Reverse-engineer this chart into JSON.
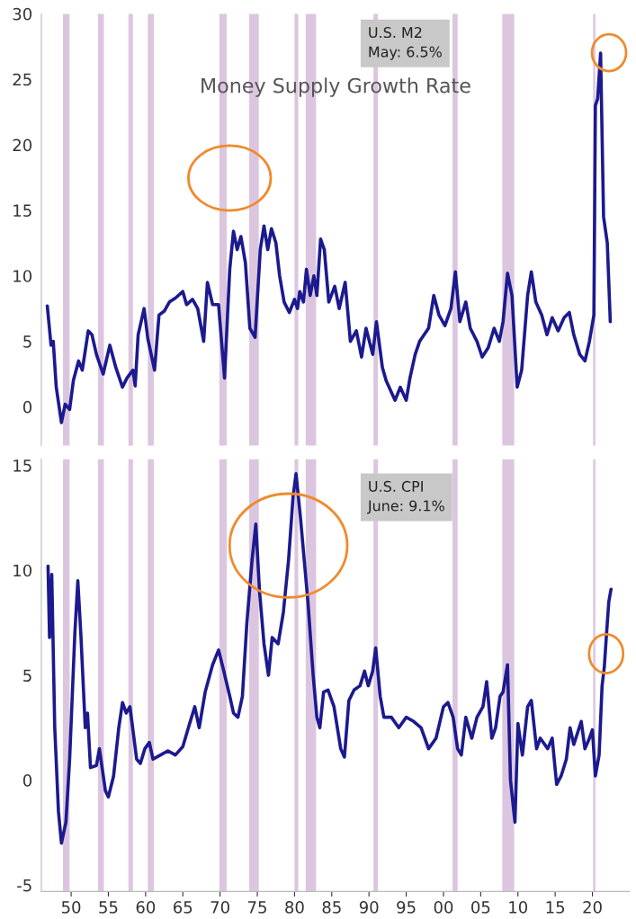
{
  "chart_data": [
    {
      "type": "line",
      "title": "Money Supply Growth Rate",
      "annotations": [
        "U.S. M2\nMay: 6.5%"
      ],
      "tick_labels": "y",
      "grid": false,
      "legend": false,
      "line_style": "solid",
      "marker": "none",
      "xlim": [
        1946,
        2025
      ],
      "ylim": [
        -3,
        30
      ],
      "yticks": [
        0,
        5,
        10,
        15,
        20,
        25,
        30
      ],
      "bands": [
        {
          "axis": "x",
          "from": 1948.9,
          "to": 1949.8,
          "color": "#dcc6df"
        },
        {
          "axis": "x",
          "from": 1953.6,
          "to": 1954.4,
          "color": "#dcc6df"
        },
        {
          "axis": "x",
          "from": 1957.7,
          "to": 1958.3,
          "color": "#dcc6df"
        },
        {
          "axis": "x",
          "from": 1960.3,
          "to": 1961.1,
          "color": "#dcc6df"
        },
        {
          "axis": "x",
          "from": 1969.9,
          "to": 1970.9,
          "color": "#dcc6df"
        },
        {
          "axis": "x",
          "from": 1973.9,
          "to": 1975.2,
          "color": "#dcc6df"
        },
        {
          "axis": "x",
          "from": 1980.0,
          "to": 1980.5,
          "color": "#dcc6df"
        },
        {
          "axis": "x",
          "from": 1981.5,
          "to": 1982.9,
          "color": "#dcc6df"
        },
        {
          "axis": "x",
          "from": 1990.6,
          "to": 1991.2,
          "color": "#dcc6df"
        },
        {
          "axis": "x",
          "from": 2001.2,
          "to": 2001.9,
          "color": "#dcc6df"
        },
        {
          "axis": "x",
          "from": 2007.9,
          "to": 2009.5,
          "color": "#dcc6df"
        },
        {
          "axis": "x",
          "from": 2020.1,
          "to": 2020.4,
          "color": "#dcc6df"
        }
      ],
      "series": [
        {
          "color": "#1c1a8e",
          "x": [
            1946.8,
            1947.3,
            1947.6,
            1948.0,
            1948.7,
            1949.2,
            1949.8,
            1950.3,
            1951.0,
            1951.5,
            1952.3,
            1952.8,
            1953.4,
            1954.3,
            1955.2,
            1956.0,
            1956.9,
            1957.5,
            1958.3,
            1958.6,
            1959.0,
            1959.8,
            1960.3,
            1961.2,
            1961.8,
            1962.5,
            1963.2,
            1964.0,
            1965.0,
            1965.5,
            1966.3,
            1967.0,
            1967.8,
            1968.3,
            1969.0,
            1969.8,
            1970.6,
            1971.3,
            1971.8,
            1972.3,
            1972.8,
            1973.4,
            1974.0,
            1974.7,
            1975.4,
            1975.9,
            1976.4,
            1976.9,
            1977.5,
            1978.0,
            1978.6,
            1979.3,
            1980.0,
            1980.4,
            1980.7,
            1981.2,
            1981.6,
            1982.1,
            1982.6,
            1983.0,
            1983.5,
            1984.0,
            1984.6,
            1985.4,
            1986.0,
            1986.8,
            1987.5,
            1988.3,
            1989.0,
            1989.6,
            1990.5,
            1991.0,
            1991.8,
            1992.3,
            1993.5,
            1994.2,
            1995.0,
            1995.5,
            1996.2,
            1996.8,
            1997.4,
            1998.0,
            1998.7,
            1999.4,
            2000.2,
            2001.0,
            2001.6,
            2002.2,
            2003.0,
            2003.6,
            2004.5,
            2005.2,
            2006.0,
            2006.8,
            2007.5,
            2008.0,
            2008.6,
            2009.2,
            2009.9,
            2010.5,
            2011.3,
            2011.8,
            2012.4,
            2013.2,
            2013.9,
            2014.6,
            2015.4,
            2016.2,
            2016.9,
            2017.5,
            2018.3,
            2019.0,
            2019.6,
            2020.2,
            2020.4,
            2020.7,
            2021.1,
            2021.5,
            2022.0,
            2022.4
          ],
          "values": [
            7.7,
            4.7,
            5.0,
            1.5,
            -1.2,
            0.2,
            -0.2,
            2.0,
            3.5,
            2.8,
            5.8,
            5.5,
            4.0,
            2.5,
            4.7,
            3.0,
            1.5,
            2.2,
            2.8,
            1.6,
            5.5,
            7.5,
            5.2,
            2.8,
            7.0,
            7.3,
            8.0,
            8.3,
            8.8,
            7.8,
            8.2,
            7.5,
            5.0,
            9.5,
            7.8,
            7.8,
            2.2,
            10.5,
            13.4,
            12.0,
            13.0,
            11.0,
            6.0,
            5.3,
            12.0,
            13.8,
            12.0,
            13.6,
            12.5,
            10.0,
            8.0,
            7.2,
            8.2,
            7.5,
            8.8,
            8.0,
            10.5,
            8.5,
            10.0,
            8.5,
            12.8,
            12.0,
            8.0,
            9.2,
            7.5,
            9.5,
            5.0,
            5.8,
            3.8,
            6.0,
            4.0,
            6.5,
            3.0,
            2.0,
            0.5,
            1.5,
            0.5,
            2.2,
            4.0,
            5.0,
            5.5,
            6.0,
            8.5,
            7.0,
            6.2,
            7.5,
            10.3,
            6.5,
            8.0,
            6.0,
            5.0,
            3.8,
            4.5,
            6.0,
            5.0,
            6.5,
            10.2,
            8.5,
            1.5,
            2.8,
            8.5,
            10.3,
            8.0,
            7.0,
            5.5,
            6.8,
            5.8,
            6.8,
            7.2,
            5.5,
            4.0,
            3.5,
            5.0,
            7.0,
            23.0,
            23.5,
            27.0,
            14.5,
            12.5,
            6.5
          ]
        }
      ]
    },
    {
      "type": "line",
      "annotations": [
        "U.S. CPI\nJune: 9.1%"
      ],
      "grid": false,
      "legend": false,
      "line_style": "solid",
      "marker": "none",
      "xlim": [
        1946,
        2025
      ],
      "ylim": [
        -5.3,
        15.3
      ],
      "yticks": [
        -5,
        0,
        5,
        10,
        15
      ],
      "xticks": [
        {
          "value": 1950,
          "label": "50"
        },
        {
          "value": 1955,
          "label": "55"
        },
        {
          "value": 1960,
          "label": "60"
        },
        {
          "value": 1965,
          "label": "65"
        },
        {
          "value": 1970,
          "label": "70"
        },
        {
          "value": 1975,
          "label": "75"
        },
        {
          "value": 1980,
          "label": "80"
        },
        {
          "value": 1985,
          "label": "85"
        },
        {
          "value": 1990,
          "label": "90"
        },
        {
          "value": 1995,
          "label": "95"
        },
        {
          "value": 2000,
          "label": "00"
        },
        {
          "value": 2005,
          "label": "05"
        },
        {
          "value": 2010,
          "label": "10"
        },
        {
          "value": 2015,
          "label": "15"
        },
        {
          "value": 2020,
          "label": "20"
        }
      ],
      "bands": [
        {
          "axis": "x",
          "from": 1948.9,
          "to": 1949.8,
          "color": "#dcc6df"
        },
        {
          "axis": "x",
          "from": 1953.6,
          "to": 1954.4,
          "color": "#dcc6df"
        },
        {
          "axis": "x",
          "from": 1957.7,
          "to": 1958.3,
          "color": "#dcc6df"
        },
        {
          "axis": "x",
          "from": 1960.3,
          "to": 1961.1,
          "color": "#dcc6df"
        },
        {
          "axis": "x",
          "from": 1969.9,
          "to": 1970.9,
          "color": "#dcc6df"
        },
        {
          "axis": "x",
          "from": 1973.9,
          "to": 1975.2,
          "color": "#dcc6df"
        },
        {
          "axis": "x",
          "from": 1980.0,
          "to": 1980.5,
          "color": "#dcc6df"
        },
        {
          "axis": "x",
          "from": 1981.5,
          "to": 1982.9,
          "color": "#dcc6df"
        },
        {
          "axis": "x",
          "from": 1990.6,
          "to": 1991.2,
          "color": "#dcc6df"
        },
        {
          "axis": "x",
          "from": 2001.2,
          "to": 2001.9,
          "color": "#dcc6df"
        },
        {
          "axis": "x",
          "from": 2007.9,
          "to": 2009.5,
          "color": "#dcc6df"
        },
        {
          "axis": "x",
          "from": 2020.1,
          "to": 2020.4,
          "color": "#dcc6df"
        }
      ],
      "series": [
        {
          "color": "#1c1a8e",
          "x": [
            1946.9,
            1947.1,
            1947.4,
            1947.8,
            1948.3,
            1948.7,
            1949.3,
            1949.8,
            1950.5,
            1950.9,
            1951.3,
            1951.9,
            1952.2,
            1952.6,
            1953.4,
            1953.8,
            1954.6,
            1955.0,
            1955.7,
            1956.4,
            1956.9,
            1957.4,
            1957.9,
            1958.8,
            1959.3,
            1959.9,
            1960.5,
            1961.0,
            1962.0,
            1963.0,
            1964.0,
            1965.0,
            1966.0,
            1966.6,
            1967.2,
            1968.0,
            1969.0,
            1969.8,
            1970.5,
            1971.3,
            1971.8,
            1972.4,
            1973.0,
            1973.6,
            1974.3,
            1974.8,
            1975.3,
            1975.9,
            1976.5,
            1977.0,
            1977.8,
            1978.5,
            1979.2,
            1979.8,
            1980.2,
            1980.8,
            1981.3,
            1981.8,
            1982.5,
            1983.0,
            1983.4,
            1983.9,
            1984.5,
            1985.3,
            1986.2,
            1986.7,
            1987.3,
            1988.0,
            1988.8,
            1989.4,
            1989.9,
            1990.5,
            1990.9,
            1991.5,
            1992.0,
            1993.0,
            1994.0,
            1995.0,
            1996.0,
            1997.0,
            1998.0,
            1999.0,
            2000.0,
            2000.6,
            2001.3,
            2001.9,
            2002.4,
            2003.0,
            2003.8,
            2004.5,
            2005.3,
            2005.8,
            2006.5,
            2007.0,
            2007.6,
            2008.0,
            2008.6,
            2009.0,
            2009.6,
            2010.0,
            2010.6,
            2011.3,
            2011.8,
            2012.5,
            2013.0,
            2014.0,
            2014.6,
            2015.2,
            2015.8,
            2016.5,
            2017.0,
            2017.5,
            2018.5,
            2019.0,
            2019.6,
            2020.0,
            2020.4,
            2020.9,
            2021.3,
            2021.6,
            2021.9,
            2022.2,
            2022.5
          ],
          "values": [
            10.2,
            6.8,
            9.8,
            2.5,
            -1.5,
            -3.0,
            -2.0,
            1.0,
            7.0,
            9.5,
            7.0,
            2.5,
            3.2,
            0.6,
            0.7,
            1.5,
            -0.5,
            -0.8,
            0.2,
            2.5,
            3.7,
            3.2,
            3.5,
            1.0,
            0.8,
            1.5,
            1.8,
            1.0,
            1.2,
            1.4,
            1.2,
            1.6,
            2.8,
            3.5,
            2.5,
            4.2,
            5.5,
            6.2,
            5.2,
            4.0,
            3.2,
            3.0,
            4.0,
            7.5,
            10.5,
            12.2,
            9.0,
            6.5,
            5.0,
            6.8,
            6.5,
            8.0,
            10.5,
            13.5,
            14.6,
            12.5,
            10.5,
            8.5,
            5.0,
            3.0,
            2.5,
            4.2,
            4.3,
            3.5,
            1.5,
            1.1,
            3.8,
            4.3,
            4.5,
            5.2,
            4.5,
            5.2,
            6.3,
            4.0,
            3.0,
            3.0,
            2.5,
            3.0,
            2.8,
            2.5,
            1.5,
            2.0,
            3.5,
            3.7,
            3.0,
            1.5,
            1.2,
            3.0,
            2.0,
            3.0,
            3.5,
            4.7,
            2.0,
            2.5,
            4.0,
            4.2,
            5.5,
            0.0,
            -2.0,
            2.7,
            1.2,
            3.5,
            3.8,
            1.5,
            2.0,
            1.5,
            2.0,
            -0.2,
            0.2,
            1.0,
            2.5,
            1.7,
            2.8,
            1.5,
            2.0,
            2.4,
            0.2,
            1.2,
            4.5,
            5.4,
            7.0,
            8.5,
            9.1
          ]
        }
      ]
    }
  ]
}
